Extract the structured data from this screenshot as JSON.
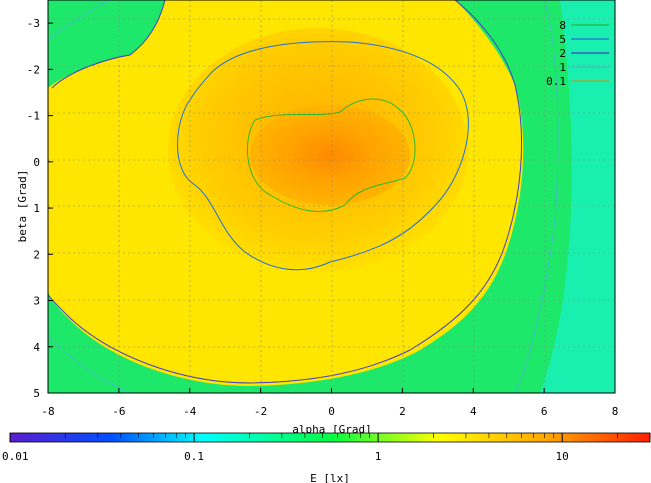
{
  "chart_data": {
    "type": "heatmap",
    "title": "",
    "xlabel": "alpha [Grad]",
    "ylabel": "beta [Grad]",
    "xlim": [
      -8,
      8
    ],
    "ylim": [
      5,
      -3.5
    ],
    "x_ticks": [
      "-8",
      "-6",
      "-4",
      "-2",
      "0",
      "2",
      "4",
      "6",
      "8"
    ],
    "y_ticks": [
      "-3",
      "-2",
      "-1",
      "0",
      "1",
      "2",
      "3",
      "4",
      "5"
    ],
    "grid": true,
    "colorbar": {
      "label": "E [lx]",
      "scale": "log",
      "range": [
        0.01,
        30
      ],
      "tick_labels": [
        "0.01",
        "0.1",
        "1",
        "10"
      ],
      "colors": [
        "#5a1ecf",
        "#0050ff",
        "#00ffff",
        "#00ff66",
        "#ffff00",
        "#ff9f00",
        "#ff2000"
      ]
    },
    "contours": [
      {
        "level": "8",
        "color": "#2db82d"
      },
      {
        "level": "5",
        "color": "#1f6fd6"
      },
      {
        "level": "2",
        "color": "#4040c0"
      },
      {
        "level": "1",
        "color": "#40c0c0"
      },
      {
        "level": "0.1",
        "color": "#b0a030"
      }
    ],
    "legend_position": "top-right",
    "peak": {
      "alpha": 0,
      "beta": 0.3,
      "value": 12
    }
  }
}
